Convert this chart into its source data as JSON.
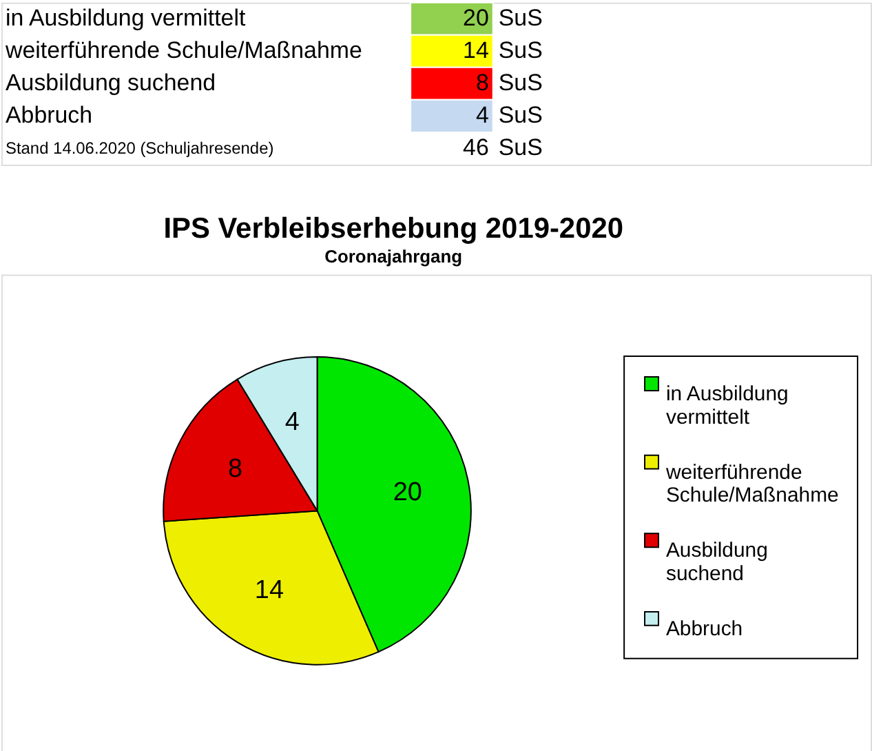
{
  "chart_data": [
    {
      "type": "other",
      "categories": [
        "in Ausbildung vermittelt",
        "weiterführende Schule/Maßnahme",
        "Ausbildung suchend",
        "Abbruch"
      ],
      "values": [
        20,
        14,
        8,
        4
      ],
      "colors": [
        "#92d050",
        "#ffff00",
        "#ff0000",
        "#c5d9f1"
      ],
      "data_labels": true,
      "totals": [
        "46"
      ],
      "annotations": [
        "SuS",
        "Stand 14.06.2020 (Schuljahresende)"
      ]
    },
    {
      "type": "pie",
      "title": "IPS Verbleibserhebung 2019-2020",
      "subtitle": "Coronajahrgang",
      "categories": [
        "in Ausbildung vermittelt",
        "weiterführende Schule/Maßnahme",
        "Ausbildung suchend",
        "Abbruch"
      ],
      "values": [
        20,
        14,
        8,
        4
      ],
      "colors": [
        "#00e600",
        "#eeee00",
        "#e00000",
        "#c4eef0"
      ],
      "legend": "right",
      "data_labels": true
    }
  ]
}
